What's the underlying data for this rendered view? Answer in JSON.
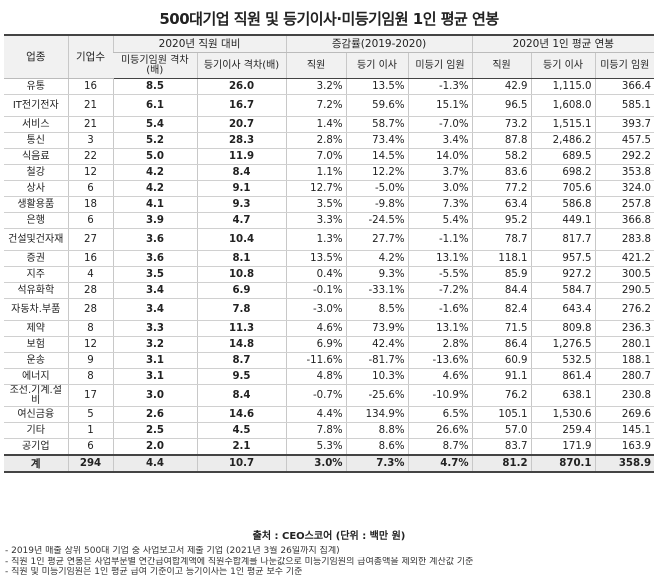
{
  "title": "500대기업 직원 및 등기이사·미등기임원 1인 평균 연봉",
  "table": {
    "col_industry": "업종",
    "col_firms": "기업수",
    "group_ratio": "2020년 직원 대비",
    "group_change": "증감률(2019-2020)",
    "group_pay": "2020년 1인 평균 연봉",
    "sub": {
      "ratio_unreg": "미등기임원 격차(배)",
      "ratio_reg": "등기이사 격차(배)",
      "chg_emp": "직원",
      "chg_reg": "등기 이사",
      "chg_unreg": "미등기 임원",
      "pay_emp": "직원",
      "pay_reg": "등기 이사",
      "pay_unreg": "미등기 임원"
    },
    "rows": [
      {
        "ind": "유통",
        "n": "16",
        "r1": "8.5",
        "r2": "26.0",
        "c1": "3.2%",
        "c2": "13.5%",
        "c3": "-1.3%",
        "p1": "42.9",
        "p2": "1,115.0",
        "p3": "366.4"
      },
      {
        "ind": "IT전기전자",
        "n": "21",
        "r1": "6.1",
        "r2": "16.7",
        "c1": "7.2%",
        "c2": "59.6%",
        "c3": "15.1%",
        "p1": "96.5",
        "p2": "1,608.0",
        "p3": "585.1"
      },
      {
        "ind": "서비스",
        "n": "21",
        "r1": "5.4",
        "r2": "20.7",
        "c1": "1.4%",
        "c2": "58.7%",
        "c3": "-7.0%",
        "p1": "73.2",
        "p2": "1,515.1",
        "p3": "393.7"
      },
      {
        "ind": "통신",
        "n": "3",
        "r1": "5.2",
        "r2": "28.3",
        "c1": "2.8%",
        "c2": "73.4%",
        "c3": "3.4%",
        "p1": "87.8",
        "p2": "2,486.2",
        "p3": "457.5"
      },
      {
        "ind": "식음료",
        "n": "22",
        "r1": "5.0",
        "r2": "11.9",
        "c1": "7.0%",
        "c2": "14.5%",
        "c3": "14.0%",
        "p1": "58.2",
        "p2": "689.5",
        "p3": "292.2"
      },
      {
        "ind": "철강",
        "n": "12",
        "r1": "4.2",
        "r2": "8.4",
        "c1": "1.1%",
        "c2": "12.2%",
        "c3": "3.7%",
        "p1": "83.6",
        "p2": "698.2",
        "p3": "353.8"
      },
      {
        "ind": "상사",
        "n": "6",
        "r1": "4.2",
        "r2": "9.1",
        "c1": "12.7%",
        "c2": "-5.0%",
        "c3": "3.0%",
        "p1": "77.2",
        "p2": "705.6",
        "p3": "324.0"
      },
      {
        "ind": "생활용품",
        "n": "18",
        "r1": "4.1",
        "r2": "9.3",
        "c1": "3.5%",
        "c2": "-9.8%",
        "c3": "7.3%",
        "p1": "63.4",
        "p2": "586.8",
        "p3": "257.8"
      },
      {
        "ind": "은행",
        "n": "6",
        "r1": "3.9",
        "r2": "4.7",
        "c1": "3.3%",
        "c2": "-24.5%",
        "c3": "5.4%",
        "p1": "95.2",
        "p2": "449.1",
        "p3": "366.8"
      },
      {
        "ind": "건설및건자재",
        "n": "27",
        "r1": "3.6",
        "r2": "10.4",
        "c1": "1.3%",
        "c2": "27.7%",
        "c3": "-1.1%",
        "p1": "78.7",
        "p2": "817.7",
        "p3": "283.8"
      },
      {
        "ind": "증권",
        "n": "16",
        "r1": "3.6",
        "r2": "8.1",
        "c1": "13.5%",
        "c2": "4.2%",
        "c3": "13.1%",
        "p1": "118.1",
        "p2": "957.5",
        "p3": "421.2"
      },
      {
        "ind": "지주",
        "n": "4",
        "r1": "3.5",
        "r2": "10.8",
        "c1": "0.4%",
        "c2": "9.3%",
        "c3": "-5.5%",
        "p1": "85.9",
        "p2": "927.2",
        "p3": "300.5"
      },
      {
        "ind": "석유화학",
        "n": "28",
        "r1": "3.4",
        "r2": "6.9",
        "c1": "-0.1%",
        "c2": "-33.1%",
        "c3": "-7.2%",
        "p1": "84.4",
        "p2": "584.7",
        "p3": "290.5"
      },
      {
        "ind": "자동차.부품",
        "n": "28",
        "r1": "3.4",
        "r2": "7.8",
        "c1": "-3.0%",
        "c2": "8.5%",
        "c3": "-1.6%",
        "p1": "82.4",
        "p2": "643.4",
        "p3": "276.2"
      },
      {
        "ind": "제약",
        "n": "8",
        "r1": "3.3",
        "r2": "11.3",
        "c1": "4.6%",
        "c2": "73.9%",
        "c3": "13.1%",
        "p1": "71.5",
        "p2": "809.8",
        "p3": "236.3"
      },
      {
        "ind": "보험",
        "n": "12",
        "r1": "3.2",
        "r2": "14.8",
        "c1": "6.9%",
        "c2": "42.4%",
        "c3": "2.8%",
        "p1": "86.4",
        "p2": "1,276.5",
        "p3": "280.1"
      },
      {
        "ind": "운송",
        "n": "9",
        "r1": "3.1",
        "r2": "8.7",
        "c1": "-11.6%",
        "c2": "-81.7%",
        "c3": "-13.6%",
        "p1": "60.9",
        "p2": "532.5",
        "p3": "188.1"
      },
      {
        "ind": "에너지",
        "n": "8",
        "r1": "3.1",
        "r2": "9.5",
        "c1": "4.8%",
        "c2": "10.3%",
        "c3": "4.6%",
        "p1": "91.1",
        "p2": "861.4",
        "p3": "280.7"
      },
      {
        "ind": "조선.기계.설비",
        "n": "17",
        "r1": "3.0",
        "r2": "8.4",
        "c1": "-0.7%",
        "c2": "-25.6%",
        "c3": "-10.9%",
        "p1": "76.2",
        "p2": "638.1",
        "p3": "230.8"
      },
      {
        "ind": "여신금융",
        "n": "5",
        "r1": "2.6",
        "r2": "14.6",
        "c1": "4.4%",
        "c2": "134.9%",
        "c3": "6.5%",
        "p1": "105.1",
        "p2": "1,530.6",
        "p3": "269.6"
      },
      {
        "ind": "기타",
        "n": "1",
        "r1": "2.5",
        "r2": "4.5",
        "c1": "7.8%",
        "c2": "8.8%",
        "c3": "26.6%",
        "p1": "57.0",
        "p2": "259.4",
        "p3": "145.1"
      },
      {
        "ind": "공기업",
        "n": "6",
        "r1": "2.0",
        "r2": "2.1",
        "c1": "5.3%",
        "c2": "8.6%",
        "c3": "8.7%",
        "p1": "83.7",
        "p2": "171.9",
        "p3": "163.9"
      }
    ],
    "total": {
      "ind": "계",
      "n": "294",
      "r1": "4.4",
      "r2": "10.7",
      "c1": "3.0%",
      "c2": "7.3%",
      "c3": "4.7%",
      "p1": "81.2",
      "p2": "870.1",
      "p3": "358.9"
    }
  },
  "source": "출처 : CEO스코어 (단위 : 백만 원)",
  "notes": [
    "- 2019년 매출 상위 500대 기업 중 사업보고서 제출 기업 (2021년 3월 26일까지 집계)",
    "- 직원 1인 평균 연봉은 사업부문별 연간급여합계액에 직원수합계를 나눈값으로 미등기임원의 급여총액을 제외한 계산값 기준",
    "- 직원 및 미등기임원은 1인 평균 급여 기준이고 등기이사는 1인 평균 보수 기준"
  ]
}
